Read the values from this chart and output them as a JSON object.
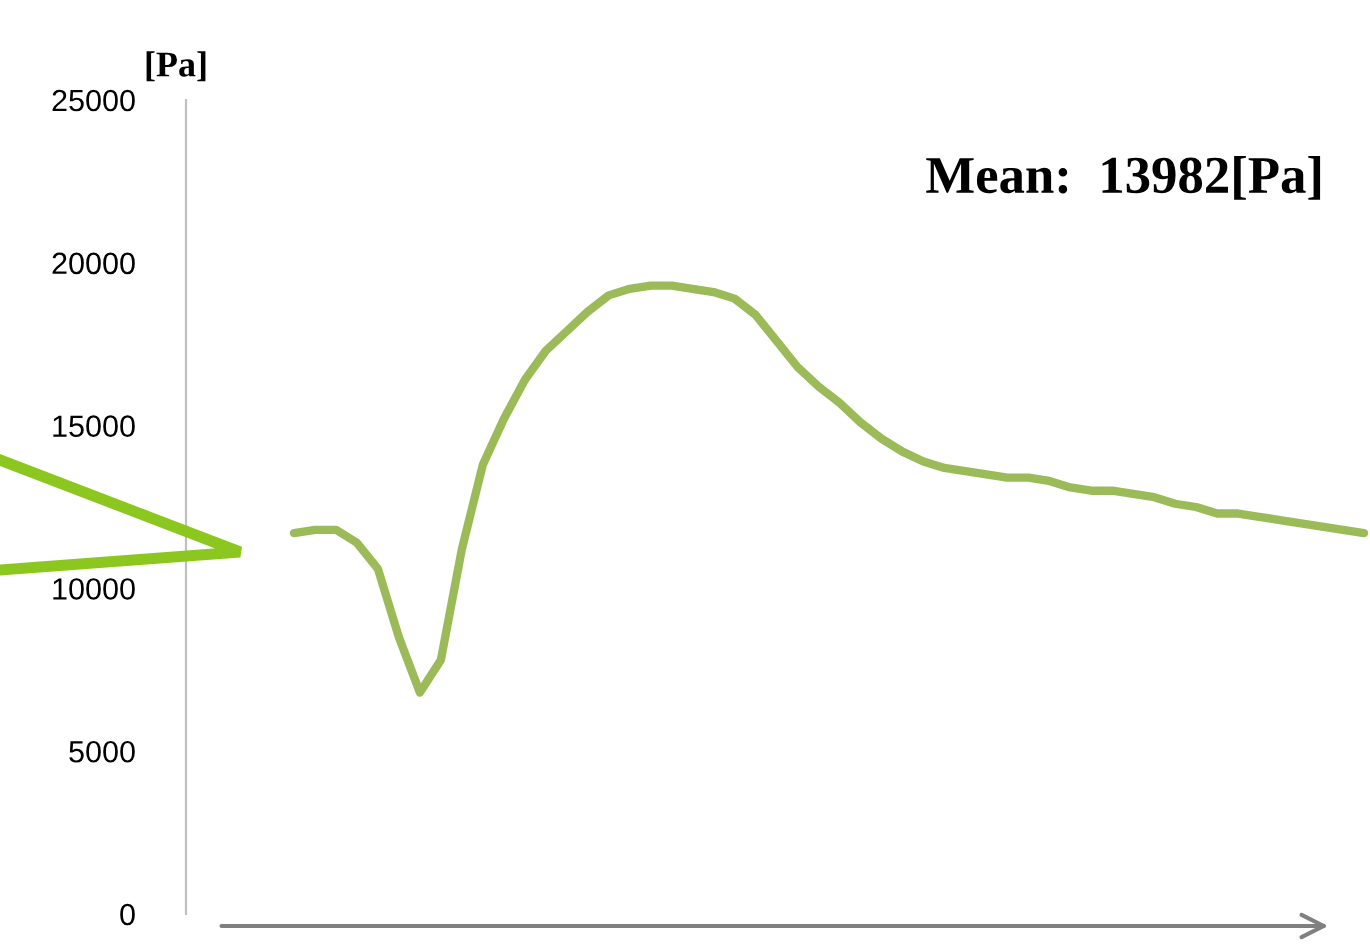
{
  "chart_data": {
    "type": "line",
    "ylabel": "[Pa]",
    "categories": [
      null,
      null,
      null,
      null,
      null,
      null,
      null,
      null,
      null,
      null,
      null,
      null,
      null,
      null,
      null,
      null,
      null,
      null,
      null,
      null,
      null,
      null,
      null,
      null,
      null,
      null,
      null,
      null,
      null,
      null,
      null,
      null,
      null,
      null,
      null,
      null,
      null,
      null,
      null,
      null,
      null,
      null,
      null,
      null,
      null,
      null,
      null,
      null,
      null,
      null,
      null,
      null
    ],
    "series": [
      {
        "color": "#9bbb59",
        "values": [
          11700,
          11800,
          11800,
          11400,
          10600,
          8500,
          6800,
          7800,
          11200,
          13800,
          15200,
          16400,
          17300,
          17900,
          18500,
          19000,
          19200,
          19300,
          19300,
          19200,
          19100,
          18900,
          18400,
          17600,
          16800,
          16200,
          15700,
          15100,
          14600,
          14200,
          13900,
          13700,
          13600,
          13500,
          13400,
          13400,
          13300,
          13100,
          13000,
          13000,
          12900,
          12800,
          12600,
          12500,
          12300,
          12300,
          12200,
          12100,
          12000,
          11900,
          11800,
          11700
        ]
      }
    ],
    "ylim": [
      0,
      25000
    ],
    "yticks": [
      0,
      5000,
      10000,
      15000,
      20000,
      25000
    ],
    "grid": false,
    "legend": false,
    "marker": "none",
    "line_style": "solid",
    "annotations": [
      "Mean:  13982[Pa]"
    ]
  }
}
